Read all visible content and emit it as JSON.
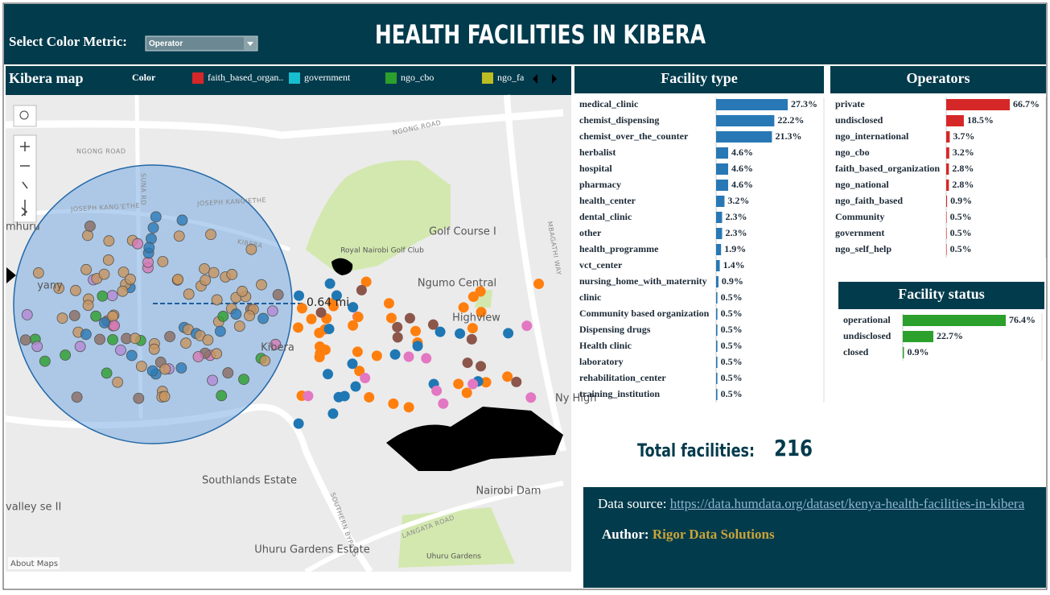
{
  "header": {
    "title": "HEALTH FACILITIES IN KIBERA",
    "select_label": "Select Color Metric:",
    "select_value": "Operator"
  },
  "map": {
    "title": "Kibera map",
    "legend_title": "Color",
    "legend": [
      {
        "name": "faith_based_organ..",
        "color": "#d62728"
      },
      {
        "name": "government",
        "color": "#17becf"
      },
      {
        "name": "ngo_cbo",
        "color": "#2ca02c"
      },
      {
        "name": "ngo_fa",
        "color": "#bcbd22"
      }
    ],
    "labels": [
      "NGONG ROAD",
      "NGONG ROAD",
      "SUNA RD",
      "JOSEPH KANG'ETHE",
      "JOSEPH KANG'ETHE",
      "KIBERA",
      "Royal Nairobi Golf Club",
      "Golf Course I",
      "Ngumo Central",
      "Highview",
      "MBAGATHI WAY",
      "Kibera",
      "yany",
      "mhuru",
      "Southlands Estate",
      "SOUTHERN BYPASS",
      "Nairobi Dam",
      "LANGATA ROAD",
      "Uhuru Gardens Estate",
      "Uhuru Gardens",
      "valley se II",
      "Ny High"
    ],
    "scale_label": "0.64 mi",
    "attribution": "About Maps"
  },
  "chart_data": [
    {
      "type": "bar",
      "title": "Facility type",
      "color": "#2878b5",
      "categories": [
        "medical_clinic",
        "chemist_dispensing",
        "chemist_over_the_counter",
        "herbalist",
        "hospital",
        "pharmacy",
        "health_center",
        "dental_clinic",
        "other",
        "health_programme",
        "vct_center",
        "nursing_home_with_maternity",
        "clinic",
        "Community based organization",
        "Dispensing drugs",
        "Health clinic",
        "laboratory",
        "rehabilitation_center",
        "training_institution"
      ],
      "values": [
        27.3,
        22.2,
        21.3,
        4.6,
        4.6,
        4.6,
        3.2,
        2.3,
        2.3,
        1.9,
        1.4,
        0.9,
        0.5,
        0.5,
        0.5,
        0.5,
        0.5,
        0.5,
        0.5
      ],
      "value_labels": [
        "27.3%",
        "22.2%",
        "21.3%",
        "4.6%",
        "4.6%",
        "4.6%",
        "3.2%",
        "2.3%",
        "2.3%",
        "1.9%",
        "1.4%",
        "0.9%",
        "0.5%",
        "0.5%",
        "0.5%",
        "0.5%",
        "0.5%",
        "0.5%",
        "0.5%"
      ]
    },
    {
      "type": "bar",
      "title": "Operators",
      "color": "#d62728",
      "categories": [
        "private",
        "undisclosed",
        "ngo_international",
        "ngo_cbo",
        "faith_based_organization",
        "ngo_national",
        "ngo_faith_based",
        "Community",
        "government",
        "ngo_self_help"
      ],
      "values": [
        66.7,
        18.5,
        3.7,
        3.2,
        2.8,
        2.8,
        0.9,
        0.5,
        0.5,
        0.5
      ],
      "value_labels": [
        "66.7%",
        "18.5%",
        "3.7%",
        "3.2%",
        "2.8%",
        "2.8%",
        "0.9%",
        "0.5%",
        "0.5%",
        "0.5%"
      ]
    },
    {
      "type": "bar",
      "title": "Facility status",
      "color": "#2ca02c",
      "categories": [
        "operational",
        "undisclosed",
        "closed"
      ],
      "values": [
        76.4,
        22.7,
        0.9
      ],
      "value_labels": [
        "76.4%",
        "22.7%",
        "0.9%"
      ]
    }
  ],
  "total": {
    "label": "Total facilities:",
    "value": 216
  },
  "source": {
    "label": "Data source:",
    "url": "https://data.humdata.org/dataset/kenya-health-facilities-in-kibera",
    "author_label": "Author:",
    "author": "Rigor Data Solutions"
  }
}
